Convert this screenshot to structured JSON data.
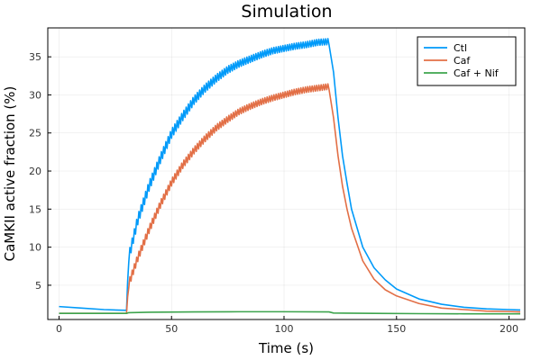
{
  "chart_data": {
    "type": "line",
    "title": "Simulation",
    "xlabel": "Time (s)",
    "ylabel": "CaMKII active fraction (%)",
    "xlim": [
      -5,
      207
    ],
    "ylim": [
      0.5,
      38.8
    ],
    "xticks": [
      0,
      50,
      100,
      150,
      200
    ],
    "yticks": [
      5,
      10,
      15,
      20,
      25,
      30,
      35
    ],
    "grid": true,
    "legend_position": "top-right",
    "stimulus": {
      "start": 30,
      "end": 120,
      "pulse_period": 1.0
    },
    "series": [
      {
        "name": "Ctl",
        "color": "#009af9",
        "oscillating": true,
        "points": [
          [
            0,
            2.2
          ],
          [
            10,
            2.0
          ],
          [
            20,
            1.8
          ],
          [
            30,
            1.7
          ],
          [
            31,
            8.7
          ],
          [
            35,
            13.6
          ],
          [
            40,
            18.0
          ],
          [
            45,
            21.6
          ],
          [
            50,
            24.9
          ],
          [
            55,
            27.2
          ],
          [
            60,
            29.3
          ],
          [
            65,
            30.9
          ],
          [
            70,
            32.2
          ],
          [
            75,
            33.3
          ],
          [
            80,
            34.1
          ],
          [
            85,
            34.7
          ],
          [
            90,
            35.3
          ],
          [
            95,
            35.8
          ],
          [
            100,
            36.1
          ],
          [
            105,
            36.4
          ],
          [
            110,
            36.6
          ],
          [
            115,
            36.9
          ],
          [
            120,
            37.0
          ],
          [
            122,
            33.0
          ],
          [
            124,
            27.0
          ],
          [
            126,
            22.0
          ],
          [
            128,
            18.4
          ],
          [
            130,
            15.0
          ],
          [
            135,
            10.0
          ],
          [
            140,
            7.3
          ],
          [
            145,
            5.7
          ],
          [
            150,
            4.5
          ],
          [
            160,
            3.2
          ],
          [
            170,
            2.5
          ],
          [
            180,
            2.1
          ],
          [
            190,
            1.9
          ],
          [
            200,
            1.8
          ],
          [
            205,
            1.75
          ]
        ],
        "amplitude": [
          [
            30,
            0.0
          ],
          [
            31,
            1.3
          ],
          [
            40,
            1.3
          ],
          [
            60,
            1.1
          ],
          [
            80,
            0.9
          ],
          [
            100,
            0.8
          ],
          [
            120,
            0.8
          ]
        ]
      },
      {
        "name": "Caf",
        "color": "#e26f46",
        "oscillating": true,
        "points": [
          [
            0,
            1.3
          ],
          [
            30,
            1.3
          ],
          [
            31,
            5.2
          ],
          [
            35,
            8.6
          ],
          [
            40,
            12.3
          ],
          [
            45,
            15.6
          ],
          [
            50,
            18.5
          ],
          [
            55,
            20.8
          ],
          [
            60,
            22.7
          ],
          [
            65,
            24.3
          ],
          [
            70,
            25.7
          ],
          [
            75,
            26.8
          ],
          [
            80,
            27.8
          ],
          [
            85,
            28.5
          ],
          [
            90,
            29.1
          ],
          [
            95,
            29.6
          ],
          [
            100,
            30.0
          ],
          [
            105,
            30.4
          ],
          [
            110,
            30.7
          ],
          [
            115,
            30.9
          ],
          [
            120,
            31.1
          ],
          [
            122,
            27.0
          ],
          [
            124,
            22.0
          ],
          [
            126,
            18.0
          ],
          [
            128,
            15.0
          ],
          [
            130,
            12.5
          ],
          [
            135,
            8.2
          ],
          [
            140,
            5.8
          ],
          [
            145,
            4.4
          ],
          [
            150,
            3.6
          ],
          [
            160,
            2.6
          ],
          [
            170,
            2.0
          ],
          [
            180,
            1.8
          ],
          [
            190,
            1.6
          ],
          [
            200,
            1.55
          ],
          [
            205,
            1.5
          ]
        ],
        "amplitude": [
          [
            30,
            0.0
          ],
          [
            31,
            1.0
          ],
          [
            40,
            1.0
          ],
          [
            60,
            0.9
          ],
          [
            80,
            0.8
          ],
          [
            100,
            0.75
          ],
          [
            120,
            0.75
          ]
        ]
      },
      {
        "name": "Caf + Nif",
        "color": "#3da44d",
        "oscillating": false,
        "points": [
          [
            0,
            1.3
          ],
          [
            30,
            1.3
          ],
          [
            31,
            1.4
          ],
          [
            40,
            1.45
          ],
          [
            60,
            1.5
          ],
          [
            80,
            1.52
          ],
          [
            100,
            1.52
          ],
          [
            120,
            1.5
          ],
          [
            122,
            1.35
          ],
          [
            140,
            1.3
          ],
          [
            160,
            1.27
          ],
          [
            180,
            1.25
          ],
          [
            205,
            1.25
          ]
        ],
        "amplitude": []
      }
    ]
  }
}
